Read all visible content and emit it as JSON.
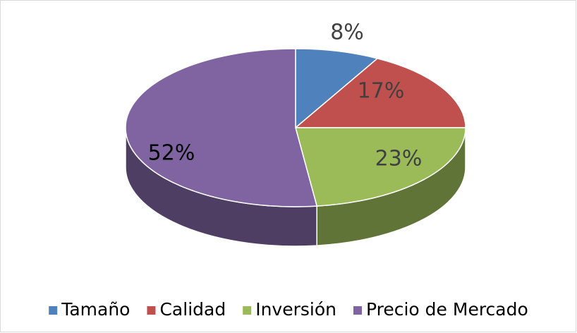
{
  "chart_data": {
    "type": "pie",
    "categories": [
      "Tamaño",
      "Calidad",
      "Inversión",
      "Precio de Mercado"
    ],
    "values": [
      8,
      17,
      23,
      52
    ],
    "value_labels": [
      "8%",
      "17%",
      "23%",
      "52%"
    ],
    "colors": [
      "#4f81bd",
      "#c0504d",
      "#9bbb59",
      "#8064a2"
    ],
    "legend": "bottom"
  }
}
